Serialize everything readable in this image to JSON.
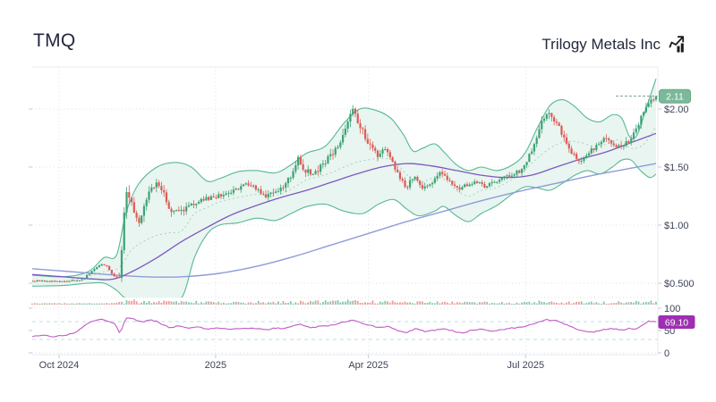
{
  "header": {
    "symbol": "TMQ",
    "company": "Trilogy Metals Inc",
    "logo_icon": "chart-up-icon"
  },
  "chart_data": {
    "type": "candlestick",
    "title": "TMQ Trilogy Metals Inc",
    "legend_position": "none",
    "grid": true,
    "x_axis": {
      "labels": [
        {
          "text": "Oct 2024",
          "f": 0.043
        },
        {
          "text": "2025",
          "f": 0.294
        },
        {
          "text": "Apr 2025",
          "f": 0.539
        },
        {
          "text": "Jul 2025",
          "f": 0.791
        }
      ]
    },
    "price_axis": {
      "ticks": [
        {
          "label": "$2.00",
          "value": 2.0
        },
        {
          "label": "$1.50",
          "value": 1.5
        },
        {
          "label": "$1.00",
          "value": 1.0
        },
        {
          "label": "$0.500",
          "value": 0.5
        }
      ],
      "last_price_label": "2.11",
      "last_price_value": 2.11,
      "range": [
        0.38,
        2.36
      ]
    },
    "rsi_axis": {
      "ticks": [
        {
          "label": "100",
          "value": 100
        },
        {
          "label": "50",
          "value": 50
        },
        {
          "label": "0",
          "value": 0
        }
      ],
      "last_value_label": "69.10",
      "last_value": 69.1,
      "guides": [
        70,
        30
      ],
      "range": [
        0,
        100
      ]
    },
    "candle_count": 252,
    "close_keypoints": [
      [
        0,
        0.52
      ],
      [
        0.03,
        0.515
      ],
      [
        0.06,
        0.52
      ],
      [
        0.08,
        0.53
      ],
      [
        0.095,
        0.6
      ],
      [
        0.11,
        0.67
      ],
      [
        0.12,
        0.64
      ],
      [
        0.13,
        0.56
      ],
      [
        0.141,
        0.53
      ],
      [
        0.146,
        1.08
      ],
      [
        0.152,
        1.28
      ],
      [
        0.16,
        1.17
      ],
      [
        0.17,
        1.03
      ],
      [
        0.18,
        1.17
      ],
      [
        0.19,
        1.3
      ],
      [
        0.198,
        1.36
      ],
      [
        0.21,
        1.28
      ],
      [
        0.222,
        1.13
      ],
      [
        0.235,
        1.1
      ],
      [
        0.25,
        1.17
      ],
      [
        0.27,
        1.21
      ],
      [
        0.29,
        1.24
      ],
      [
        0.31,
        1.27
      ],
      [
        0.33,
        1.3
      ],
      [
        0.345,
        1.37
      ],
      [
        0.36,
        1.3
      ],
      [
        0.372,
        1.24
      ],
      [
        0.385,
        1.28
      ],
      [
        0.4,
        1.33
      ],
      [
        0.415,
        1.42
      ],
      [
        0.425,
        1.58
      ],
      [
        0.435,
        1.48
      ],
      [
        0.45,
        1.44
      ],
      [
        0.465,
        1.52
      ],
      [
        0.48,
        1.6
      ],
      [
        0.495,
        1.72
      ],
      [
        0.508,
        1.95
      ],
      [
        0.513,
        2.02
      ],
      [
        0.52,
        1.93
      ],
      [
        0.532,
        1.78
      ],
      [
        0.545,
        1.65
      ],
      [
        0.555,
        1.58
      ],
      [
        0.565,
        1.66
      ],
      [
        0.575,
        1.56
      ],
      [
        0.588,
        1.43
      ],
      [
        0.6,
        1.31
      ],
      [
        0.612,
        1.44
      ],
      [
        0.625,
        1.31
      ],
      [
        0.64,
        1.36
      ],
      [
        0.655,
        1.46
      ],
      [
        0.668,
        1.39
      ],
      [
        0.682,
        1.31
      ],
      [
        0.695,
        1.34
      ],
      [
        0.71,
        1.38
      ],
      [
        0.725,
        1.33
      ],
      [
        0.74,
        1.36
      ],
      [
        0.755,
        1.41
      ],
      [
        0.77,
        1.44
      ],
      [
        0.785,
        1.47
      ],
      [
        0.8,
        1.63
      ],
      [
        0.815,
        1.86
      ],
      [
        0.828,
        1.98
      ],
      [
        0.84,
        1.89
      ],
      [
        0.852,
        1.74
      ],
      [
        0.865,
        1.62
      ],
      [
        0.875,
        1.55
      ],
      [
        0.89,
        1.61
      ],
      [
        0.905,
        1.69
      ],
      [
        0.918,
        1.75
      ],
      [
        0.932,
        1.7
      ],
      [
        0.945,
        1.67
      ],
      [
        0.958,
        1.73
      ],
      [
        0.97,
        1.85
      ],
      [
        0.982,
        1.99
      ],
      [
        0.993,
        2.07
      ],
      [
        1,
        2.11
      ]
    ],
    "volatility_keypoints": [
      [
        0,
        0.012
      ],
      [
        0.13,
        0.014
      ],
      [
        0.146,
        0.09
      ],
      [
        0.23,
        0.06
      ],
      [
        0.3,
        0.045
      ],
      [
        0.42,
        0.06
      ],
      [
        0.5,
        0.08
      ],
      [
        0.56,
        0.06
      ],
      [
        0.62,
        0.05
      ],
      [
        0.7,
        0.04
      ],
      [
        0.78,
        0.04
      ],
      [
        0.82,
        0.065
      ],
      [
        0.88,
        0.05
      ],
      [
        0.95,
        0.05
      ],
      [
        1,
        0.06
      ]
    ],
    "bollinger_upper": [
      [
        0,
        0.57
      ],
      [
        0.05,
        0.555
      ],
      [
        0.09,
        0.6
      ],
      [
        0.115,
        0.72
      ],
      [
        0.135,
        0.74
      ],
      [
        0.15,
        1.1
      ],
      [
        0.17,
        1.35
      ],
      [
        0.2,
        1.5
      ],
      [
        0.23,
        1.54
      ],
      [
        0.255,
        1.5
      ],
      [
        0.28,
        1.38
      ],
      [
        0.3,
        1.4
      ],
      [
        0.33,
        1.46
      ],
      [
        0.36,
        1.47
      ],
      [
        0.39,
        1.45
      ],
      [
        0.415,
        1.52
      ],
      [
        0.44,
        1.62
      ],
      [
        0.47,
        1.68
      ],
      [
        0.5,
        1.88
      ],
      [
        0.525,
        2.0
      ],
      [
        0.55,
        1.99
      ],
      [
        0.575,
        1.92
      ],
      [
        0.595,
        1.78
      ],
      [
        0.61,
        1.64
      ],
      [
        0.625,
        1.66
      ],
      [
        0.645,
        1.7
      ],
      [
        0.66,
        1.63
      ],
      [
        0.68,
        1.52
      ],
      [
        0.7,
        1.47
      ],
      [
        0.72,
        1.5
      ],
      [
        0.745,
        1.47
      ],
      [
        0.77,
        1.52
      ],
      [
        0.79,
        1.62
      ],
      [
        0.81,
        1.84
      ],
      [
        0.83,
        2.03
      ],
      [
        0.85,
        2.08
      ],
      [
        0.87,
        2.02
      ],
      [
        0.89,
        1.92
      ],
      [
        0.91,
        1.89
      ],
      [
        0.93,
        1.95
      ],
      [
        0.945,
        1.92
      ],
      [
        0.958,
        1.76
      ],
      [
        0.97,
        1.78
      ],
      [
        0.985,
        2.02
      ],
      [
        1,
        2.26
      ]
    ],
    "bollinger_lower": [
      [
        0,
        0.475
      ],
      [
        0.05,
        0.48
      ],
      [
        0.09,
        0.5
      ],
      [
        0.115,
        0.5
      ],
      [
        0.135,
        0.44
      ],
      [
        0.15,
        0.37
      ],
      [
        0.18,
        0.33
      ],
      [
        0.21,
        0.32
      ],
      [
        0.24,
        0.38
      ],
      [
        0.26,
        0.72
      ],
      [
        0.28,
        0.92
      ],
      [
        0.3,
        1.0
      ],
      [
        0.33,
        1.02
      ],
      [
        0.36,
        1.06
      ],
      [
        0.39,
        1.04
      ],
      [
        0.415,
        1.1
      ],
      [
        0.44,
        1.16
      ],
      [
        0.47,
        1.18
      ],
      [
        0.5,
        1.12
      ],
      [
        0.53,
        1.1
      ],
      [
        0.555,
        1.18
      ],
      [
        0.58,
        1.22
      ],
      [
        0.6,
        1.14
      ],
      [
        0.62,
        1.08
      ],
      [
        0.645,
        1.12
      ],
      [
        0.66,
        1.16
      ],
      [
        0.68,
        1.08
      ],
      [
        0.7,
        1.03
      ],
      [
        0.72,
        1.1
      ],
      [
        0.745,
        1.17
      ],
      [
        0.77,
        1.27
      ],
      [
        0.79,
        1.33
      ],
      [
        0.81,
        1.32
      ],
      [
        0.83,
        1.3
      ],
      [
        0.85,
        1.36
      ],
      [
        0.87,
        1.43
      ],
      [
        0.89,
        1.47
      ],
      [
        0.91,
        1.44
      ],
      [
        0.93,
        1.5
      ],
      [
        0.945,
        1.56
      ],
      [
        0.96,
        1.56
      ],
      [
        0.975,
        1.47
      ],
      [
        0.99,
        1.41
      ],
      [
        1,
        1.44
      ]
    ],
    "ma_fast": [
      [
        0,
        0.575
      ],
      [
        0.05,
        0.555
      ],
      [
        0.1,
        0.535
      ],
      [
        0.13,
        0.535
      ],
      [
        0.16,
        0.6
      ],
      [
        0.2,
        0.72
      ],
      [
        0.24,
        0.86
      ],
      [
        0.28,
        0.98
      ],
      [
        0.32,
        1.09
      ],
      [
        0.36,
        1.17
      ],
      [
        0.4,
        1.24
      ],
      [
        0.44,
        1.3
      ],
      [
        0.48,
        1.37
      ],
      [
        0.52,
        1.44
      ],
      [
        0.56,
        1.5
      ],
      [
        0.6,
        1.53
      ],
      [
        0.64,
        1.51
      ],
      [
        0.68,
        1.47
      ],
      [
        0.72,
        1.43
      ],
      [
        0.76,
        1.41
      ],
      [
        0.8,
        1.43
      ],
      [
        0.84,
        1.5
      ],
      [
        0.88,
        1.57
      ],
      [
        0.92,
        1.63
      ],
      [
        0.96,
        1.71
      ],
      [
        1,
        1.79
      ]
    ],
    "ma_slow": [
      [
        0,
        0.625
      ],
      [
        0.06,
        0.6
      ],
      [
        0.12,
        0.575
      ],
      [
        0.18,
        0.555
      ],
      [
        0.24,
        0.555
      ],
      [
        0.3,
        0.585
      ],
      [
        0.36,
        0.645
      ],
      [
        0.42,
        0.73
      ],
      [
        0.48,
        0.83
      ],
      [
        0.54,
        0.93
      ],
      [
        0.6,
        1.03
      ],
      [
        0.66,
        1.12
      ],
      [
        0.72,
        1.21
      ],
      [
        0.78,
        1.29
      ],
      [
        0.84,
        1.36
      ],
      [
        0.9,
        1.43
      ],
      [
        0.95,
        1.48
      ],
      [
        1,
        1.53
      ]
    ],
    "rsi_keypoints": [
      [
        0,
        37
      ],
      [
        0.02,
        40
      ],
      [
        0.035,
        36
      ],
      [
        0.05,
        39
      ],
      [
        0.065,
        43
      ],
      [
        0.08,
        56
      ],
      [
        0.09,
        67
      ],
      [
        0.1,
        72
      ],
      [
        0.112,
        75
      ],
      [
        0.125,
        70
      ],
      [
        0.133,
        66
      ],
      [
        0.139,
        45
      ],
      [
        0.143,
        50
      ],
      [
        0.15,
        79
      ],
      [
        0.158,
        77
      ],
      [
        0.168,
        73
      ],
      [
        0.178,
        68
      ],
      [
        0.188,
        74
      ],
      [
        0.198,
        71
      ],
      [
        0.21,
        63
      ],
      [
        0.222,
        56
      ],
      [
        0.235,
        61
      ],
      [
        0.25,
        55
      ],
      [
        0.265,
        58
      ],
      [
        0.28,
        53
      ],
      [
        0.3,
        56
      ],
      [
        0.32,
        53
      ],
      [
        0.34,
        55
      ],
      [
        0.36,
        54
      ],
      [
        0.38,
        52
      ],
      [
        0.39,
        56
      ],
      [
        0.405,
        54
      ],
      [
        0.42,
        61
      ],
      [
        0.43,
        64
      ],
      [
        0.445,
        56
      ],
      [
        0.46,
        59
      ],
      [
        0.475,
        61
      ],
      [
        0.49,
        65
      ],
      [
        0.505,
        71
      ],
      [
        0.515,
        74
      ],
      [
        0.53,
        66
      ],
      [
        0.545,
        60
      ],
      [
        0.56,
        57
      ],
      [
        0.572,
        59
      ],
      [
        0.585,
        50
      ],
      [
        0.6,
        46
      ],
      [
        0.615,
        54
      ],
      [
        0.63,
        48
      ],
      [
        0.645,
        51
      ],
      [
        0.66,
        54
      ],
      [
        0.675,
        49
      ],
      [
        0.69,
        44
      ],
      [
        0.705,
        51
      ],
      [
        0.72,
        53
      ],
      [
        0.735,
        49
      ],
      [
        0.75,
        51
      ],
      [
        0.765,
        55
      ],
      [
        0.78,
        57
      ],
      [
        0.795,
        61
      ],
      [
        0.81,
        68
      ],
      [
        0.825,
        74
      ],
      [
        0.84,
        72
      ],
      [
        0.855,
        64
      ],
      [
        0.87,
        54
      ],
      [
        0.885,
        49
      ],
      [
        0.9,
        47
      ],
      [
        0.915,
        52
      ],
      [
        0.93,
        54
      ],
      [
        0.945,
        51
      ],
      [
        0.957,
        55
      ],
      [
        0.967,
        52
      ],
      [
        0.978,
        63
      ],
      [
        0.988,
        71
      ],
      [
        1,
        69.1
      ]
    ],
    "colors": {
      "up": "#3da275",
      "down": "#dd5b56",
      "band_stroke": "#57b893",
      "band_fill": "#e3f3ec",
      "band_mid": "#a9cbba",
      "ma_fast": "#7d58c0",
      "ma_slow": "#8e9cd9",
      "rsi_line": "#bf5cc4",
      "rsi_guide": "#b7dfe4",
      "grid": "#dfe2ea",
      "border": "#e8ebf1",
      "tick": "#c5cad6",
      "axis_text": "#3e4358",
      "price_badge": "#7cb99a",
      "price_badge_border": "#66a985",
      "rsi_badge": "#9e2fb2",
      "last_price_line": "#6a8f7d"
    }
  }
}
